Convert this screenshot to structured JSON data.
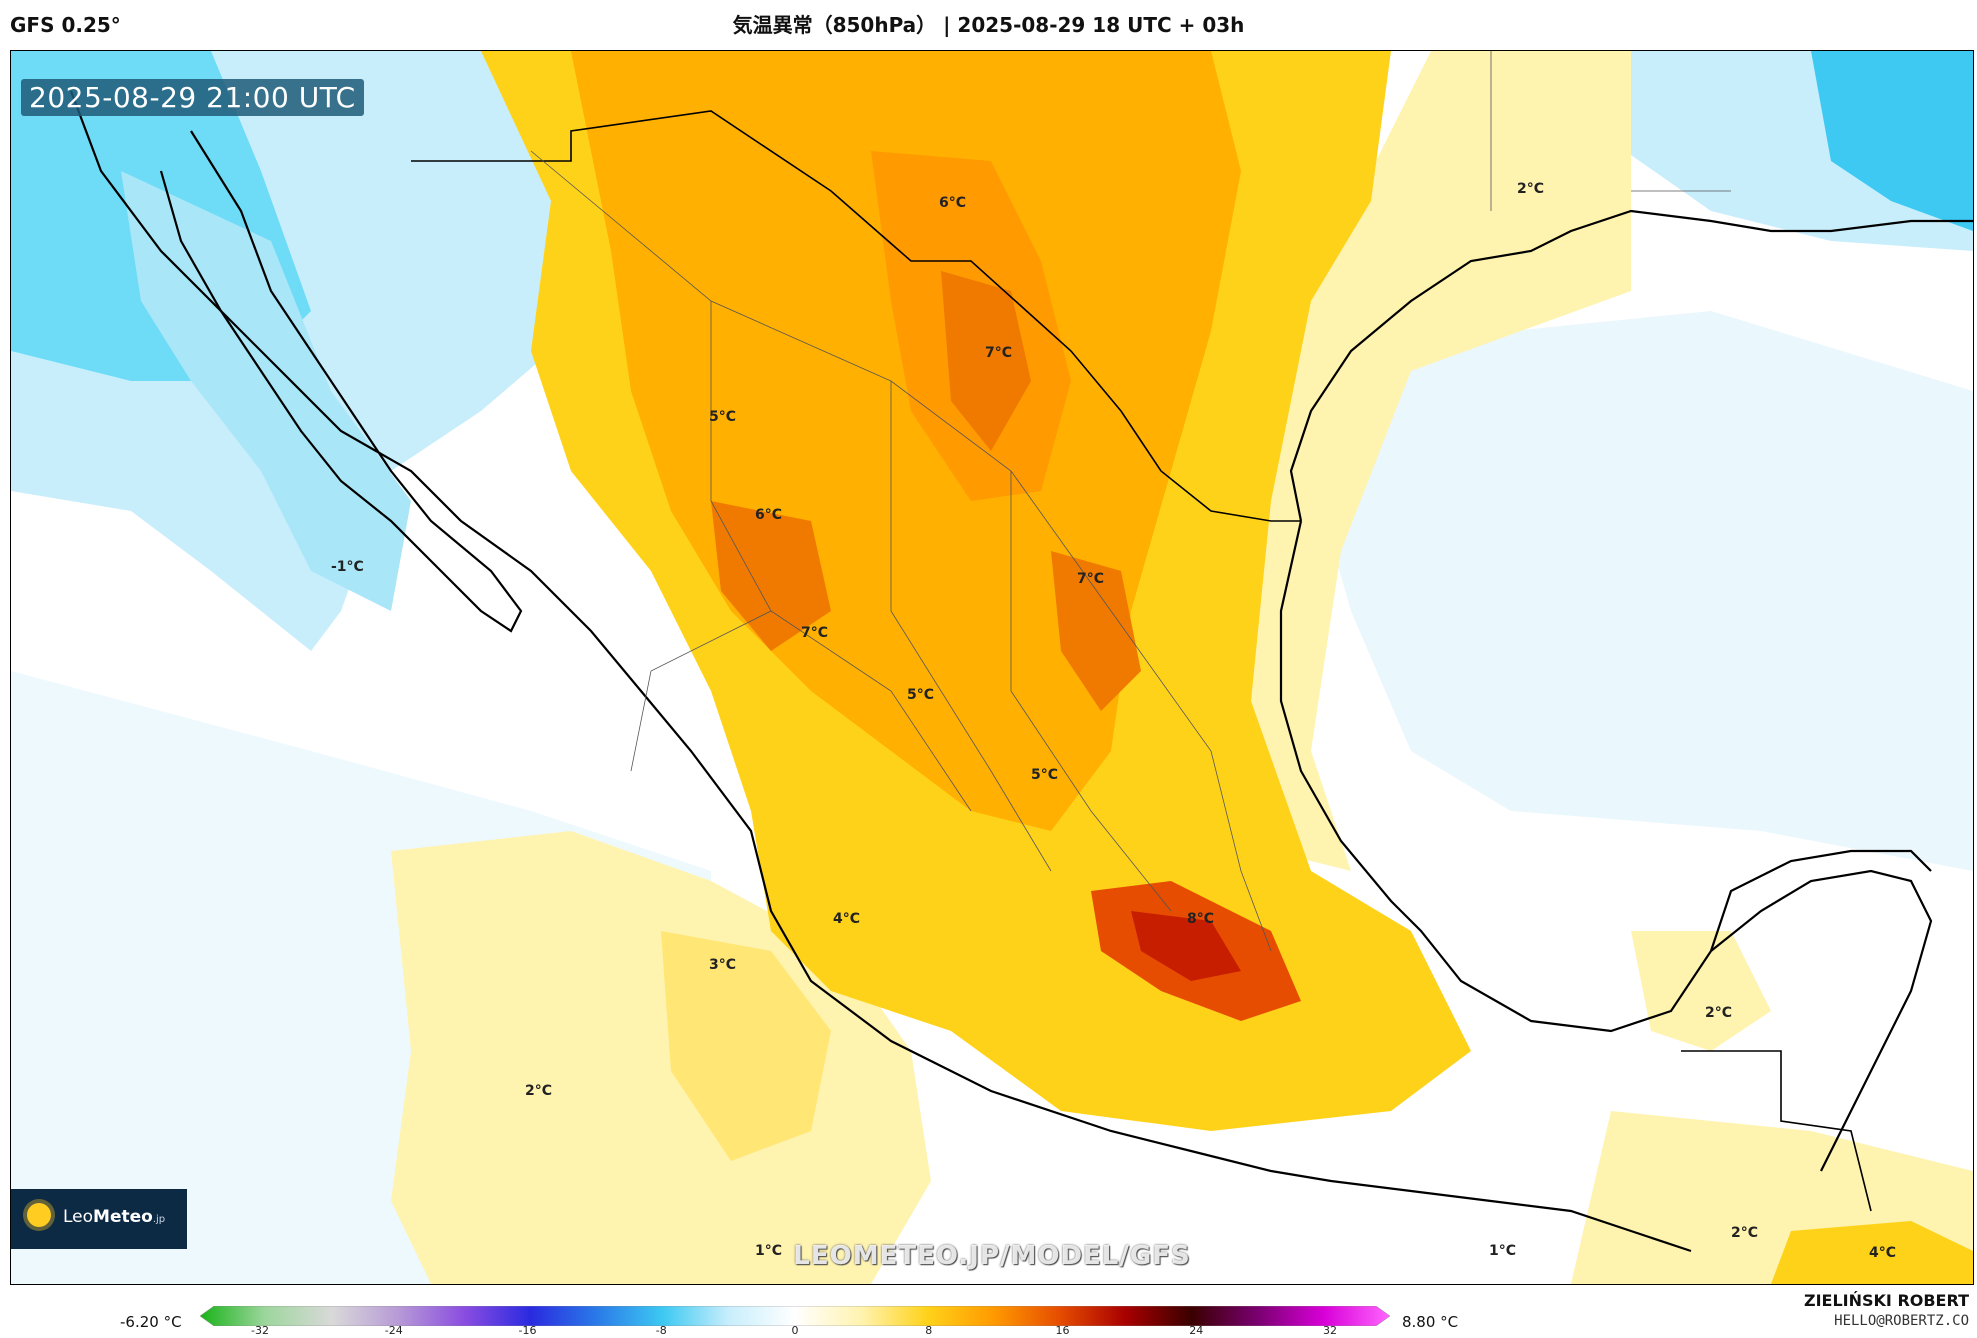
{
  "header": {
    "model": "GFS 0.25°",
    "title": "気温異常（850hPa） | 2025-08-29 18 UTC + 03h"
  },
  "map": {
    "valid_time": "2025-08-29 21:00 UTC",
    "watermark": "LEOMETEO.JP/MODEL/GFS",
    "logo": {
      "brand_light": "Leo",
      "brand_bold": "Meteo",
      "suffix": ".jp"
    },
    "labels": [
      "6°C",
      "2°C",
      "7°C",
      "5°C",
      "6°C",
      "-1°C",
      "7°C",
      "7°C",
      "5°C",
      "5°C",
      "4°C",
      "3°C",
      "8°C",
      "2°C",
      "2°C",
      "1°C",
      "1°C",
      "2°C",
      "4°C"
    ]
  },
  "legend": {
    "min_text": "-6.20 °C",
    "max_text": "8.80 °C",
    "ticks": [
      "-32",
      "-24",
      "-16",
      "-8",
      "0",
      "8",
      "16",
      "24",
      "32"
    ],
    "colors": [
      "#19b319",
      "#9ed69e",
      "#d9d9d9",
      "#b79ad6",
      "#8a4de0",
      "#2a2ae0",
      "#2a7ae8",
      "#3dc9f2",
      "#c8eefc",
      "#ffffff",
      "#fff3b0",
      "#ffd21a",
      "#ff9a00",
      "#e64d00",
      "#a80000",
      "#3a0000",
      "#7a0070",
      "#d800d8",
      "#ff66ff"
    ]
  },
  "credits": {
    "author": "ZIELIŃSKI ROBERT",
    "email": "HELLO@ROBERTZ.CO"
  }
}
